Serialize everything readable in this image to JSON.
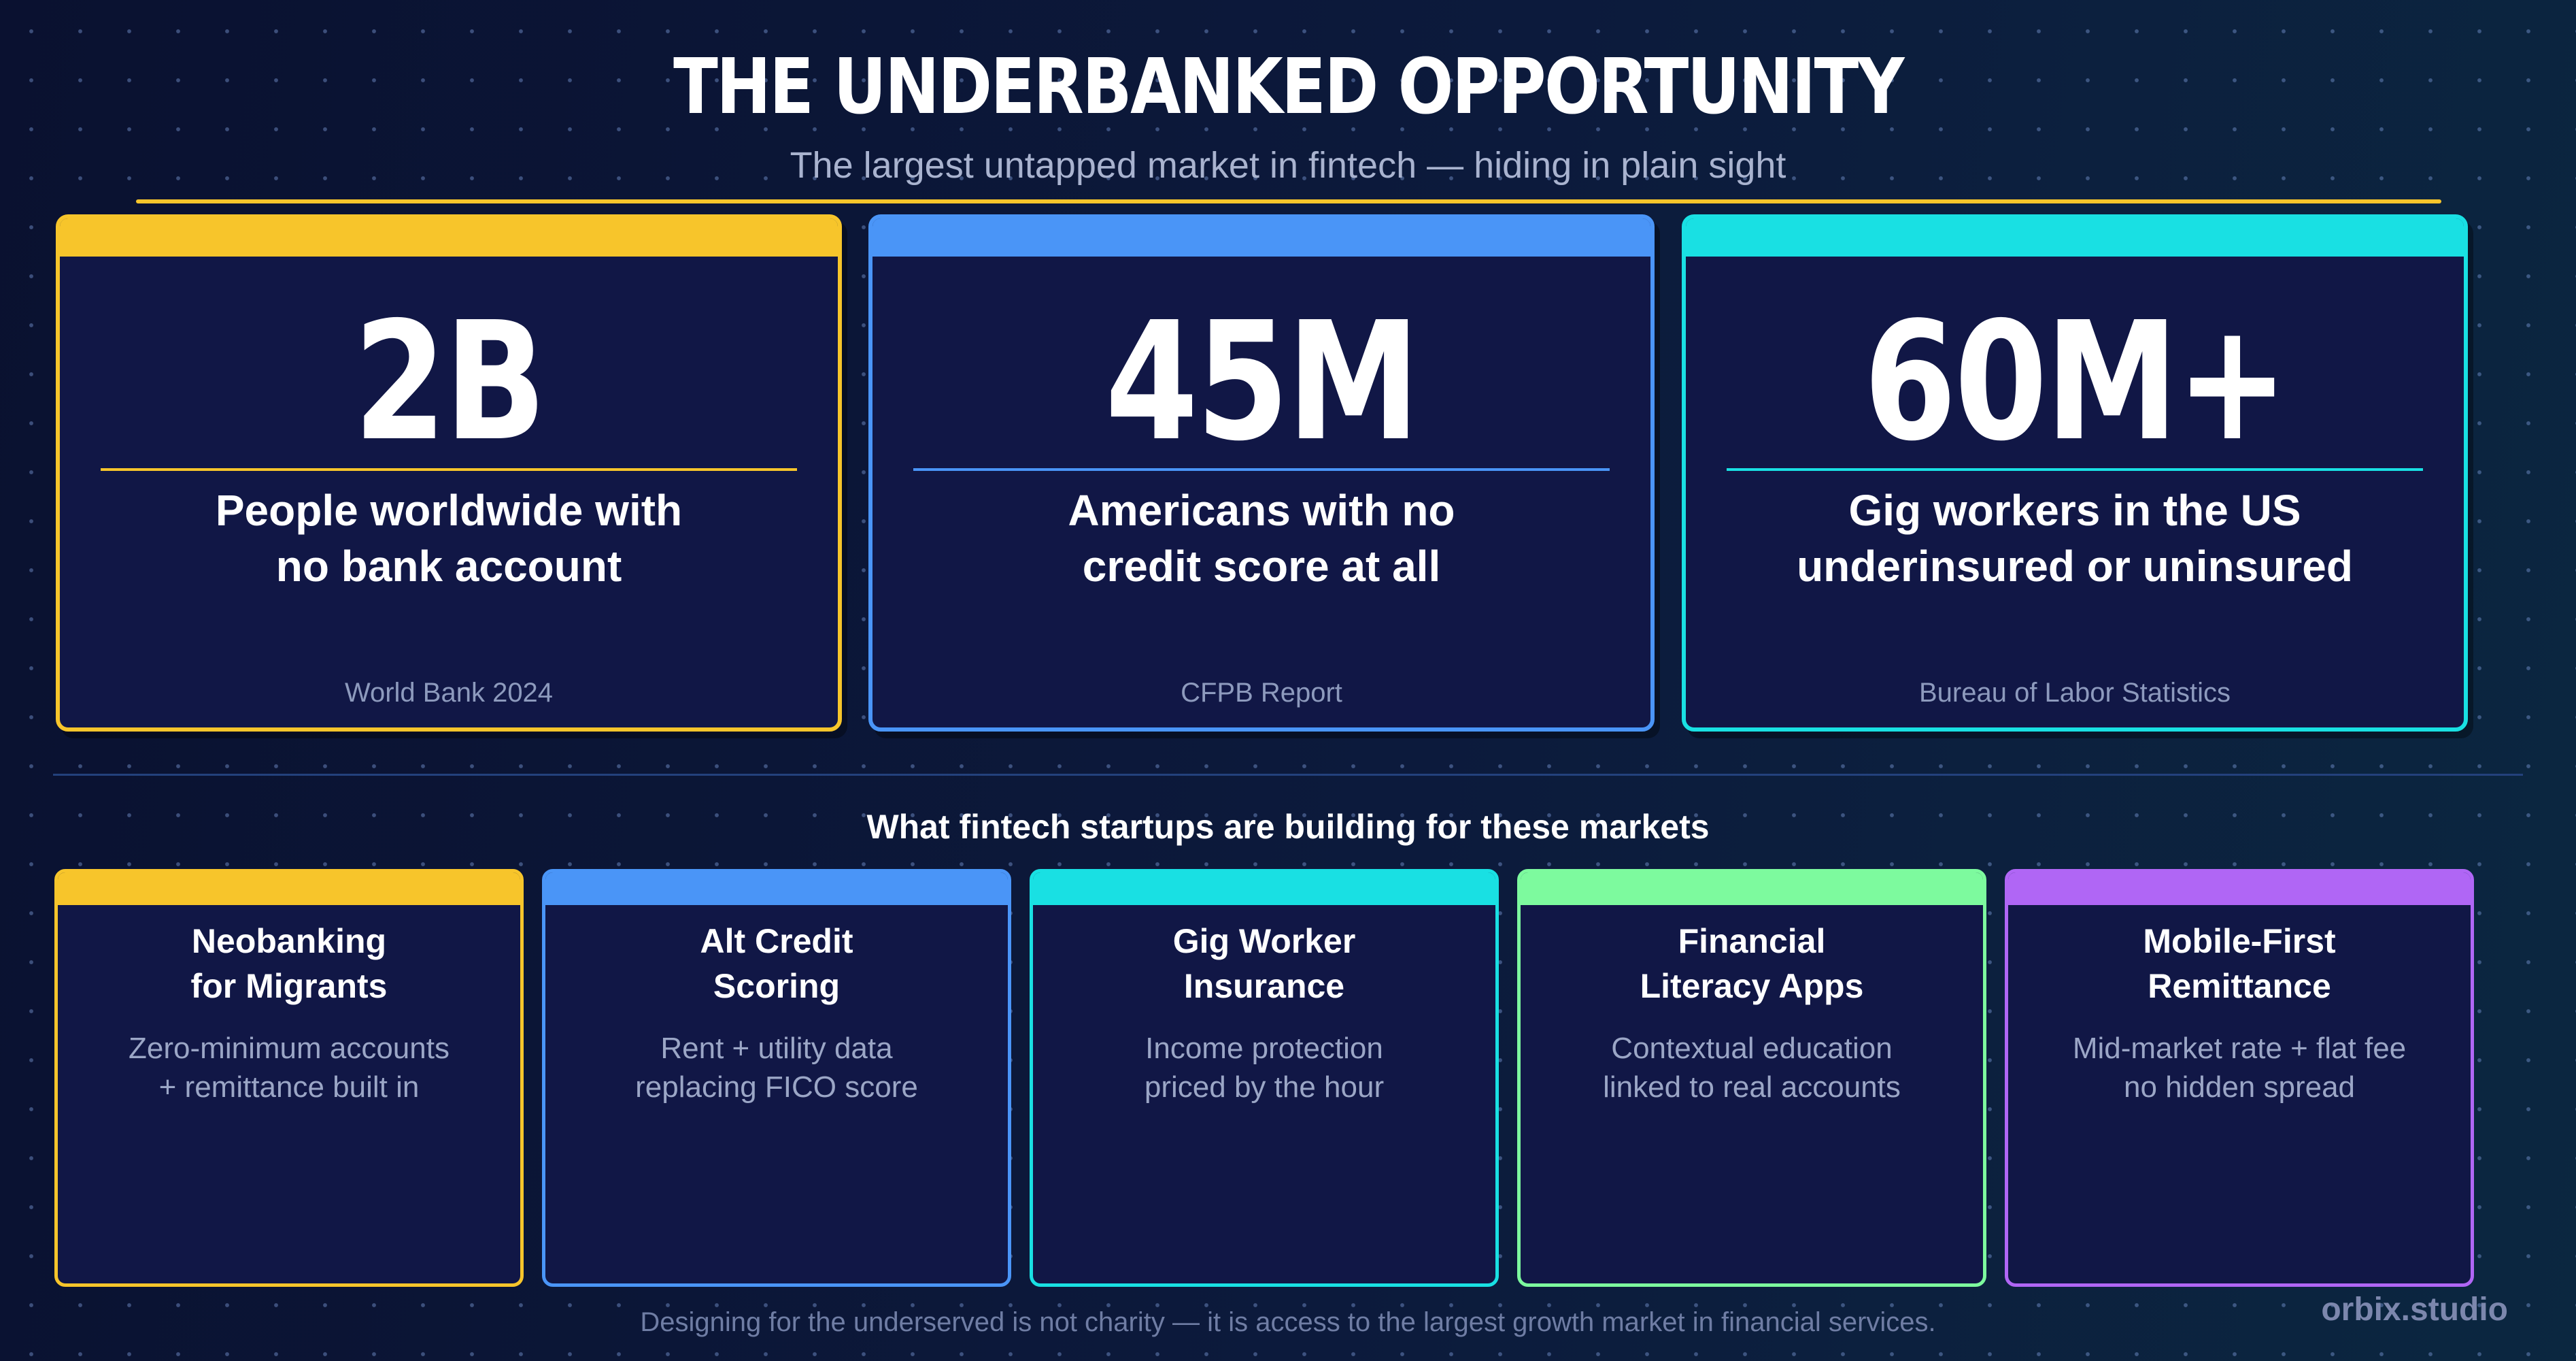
{
  "header": {
    "title": "THE UNDERBANKED OPPORTUNITY",
    "subtitle": "The largest untapped market in fintech — hiding in plain sight"
  },
  "stats": [
    {
      "value": "2B",
      "description_lines": [
        "People worldwide with",
        "no bank account"
      ],
      "source": "World Bank 2024",
      "accent": "#f7c52b"
    },
    {
      "value": "45M",
      "description_lines": [
        "Americans with no",
        "credit score at all"
      ],
      "source": "CFPB Report",
      "accent": "#4a95f7"
    },
    {
      "value": "60M+",
      "description_lines": [
        "Gig workers in the US",
        "underinsured or uninsured"
      ],
      "source": "Bureau of Labor Statistics",
      "accent": "#19e0e3"
    }
  ],
  "section": {
    "title": "What fintech startups are building for these markets"
  },
  "products": [
    {
      "title_lines": [
        "Neobanking",
        "for Migrants"
      ],
      "desc_lines": [
        "Zero-minimum accounts",
        "+ remittance built in"
      ],
      "accent": "#f7c52b"
    },
    {
      "title_lines": [
        "Alt Credit",
        "Scoring"
      ],
      "desc_lines": [
        "Rent + utility data",
        "replacing FICO score"
      ],
      "accent": "#4a95f7"
    },
    {
      "title_lines": [
        "Gig Worker",
        "Insurance"
      ],
      "desc_lines": [
        "Income protection",
        "priced by the hour"
      ],
      "accent": "#19e0e3"
    },
    {
      "title_lines": [
        "Financial",
        "Literacy Apps"
      ],
      "desc_lines": [
        "Contextual education",
        "linked to real accounts"
      ],
      "accent": "#7dfa9e"
    },
    {
      "title_lines": [
        "Mobile-First",
        "Remittance"
      ],
      "desc_lines": [
        "Mid-market rate + flat fee",
        "no hidden spread"
      ],
      "accent": "#b066f5"
    }
  ],
  "footer": {
    "text": "Designing for the underserved is not charity — it is access to the largest growth market in financial services.",
    "brand": "orbix.studio"
  }
}
